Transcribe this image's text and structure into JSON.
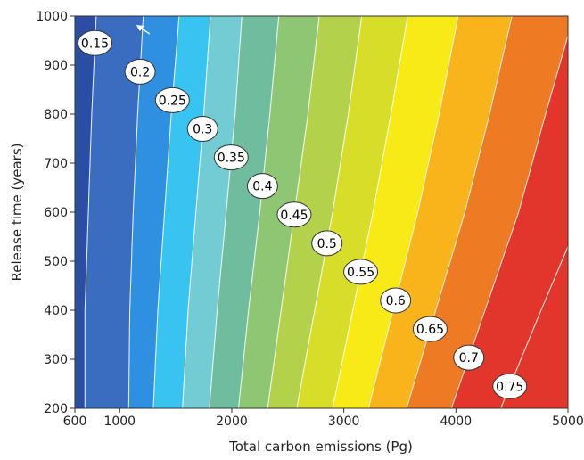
{
  "chart_data": {
    "type": "contour",
    "title": "",
    "xlabel": "Total carbon emissions (Pg)",
    "ylabel": "Release time (years)",
    "xlim": [
      600,
      5000
    ],
    "ylim": [
      200,
      1000
    ],
    "x_ticks": [
      600,
      1000,
      2000,
      3000,
      4000,
      5000
    ],
    "y_ticks": [
      200,
      300,
      400,
      500,
      600,
      700,
      800,
      900,
      1000
    ],
    "x_tick_labels": [
      "600",
      "1000",
      "2000",
      "3000",
      "4000",
      "5000"
    ],
    "y_tick_labels": [
      "200",
      "300",
      "400",
      "500",
      "600",
      "700",
      "800",
      "900",
      "1000"
    ],
    "contour_levels": [
      0.15,
      0.2,
      0.25,
      0.3,
      0.35,
      0.4,
      0.45,
      0.5,
      0.55,
      0.6,
      0.65,
      0.7,
      0.75
    ],
    "contour_labels": [
      "0.15",
      "0.2",
      "0.25",
      "0.3",
      "0.35",
      "0.4",
      "0.45",
      "0.5",
      "0.55",
      "0.6",
      "0.65",
      "0.7",
      "0.75"
    ],
    "contour_lines": [
      {
        "level": 0.15,
        "points": [
          [
            690,
            200
          ],
          [
            690,
            400
          ],
          [
            720,
            600
          ],
          [
            750,
            800
          ],
          [
            790,
            1000
          ]
        ]
      },
      {
        "level": 0.2,
        "points": [
          [
            1080,
            200
          ],
          [
            1090,
            400
          ],
          [
            1120,
            600
          ],
          [
            1160,
            800
          ],
          [
            1210,
            1000
          ]
        ]
      },
      {
        "level": 0.25,
        "points": [
          [
            1300,
            200
          ],
          [
            1340,
            400
          ],
          [
            1400,
            600
          ],
          [
            1460,
            800
          ],
          [
            1530,
            1000
          ]
        ]
      },
      {
        "level": 0.3,
        "points": [
          [
            1560,
            200
          ],
          [
            1610,
            400
          ],
          [
            1680,
            600
          ],
          [
            1750,
            800
          ],
          [
            1810,
            1000
          ]
        ]
      },
      {
        "level": 0.35,
        "points": [
          [
            1800,
            200
          ],
          [
            1870,
            400
          ],
          [
            1950,
            600
          ],
          [
            2030,
            800
          ],
          [
            2090,
            1000
          ]
        ]
      },
      {
        "level": 0.4,
        "points": [
          [
            2060,
            200
          ],
          [
            2150,
            400
          ],
          [
            2250,
            600
          ],
          [
            2340,
            800
          ],
          [
            2420,
            1000
          ]
        ]
      },
      {
        "level": 0.45,
        "points": [
          [
            2320,
            200
          ],
          [
            2440,
            400
          ],
          [
            2560,
            600
          ],
          [
            2680,
            800
          ],
          [
            2780,
            1000
          ]
        ]
      },
      {
        "level": 0.5,
        "points": [
          [
            2580,
            200
          ],
          [
            2740,
            400
          ],
          [
            2900,
            600
          ],
          [
            3040,
            800
          ],
          [
            3160,
            1000
          ]
        ]
      },
      {
        "level": 0.55,
        "points": [
          [
            2900,
            200
          ],
          [
            3080,
            400
          ],
          [
            3260,
            600
          ],
          [
            3420,
            800
          ],
          [
            3570,
            1000
          ]
        ]
      },
      {
        "level": 0.6,
        "points": [
          [
            3220,
            200
          ],
          [
            3440,
            400
          ],
          [
            3660,
            600
          ],
          [
            3850,
            800
          ],
          [
            4020,
            1000
          ]
        ]
      },
      {
        "level": 0.65,
        "points": [
          [
            3560,
            200
          ],
          [
            3820,
            400
          ],
          [
            4080,
            600
          ],
          [
            4300,
            800
          ],
          [
            4500,
            1000
          ]
        ]
      },
      {
        "level": 0.7,
        "points": [
          [
            3960,
            200
          ],
          [
            4260,
            400
          ],
          [
            4560,
            600
          ],
          [
            4800,
            800
          ],
          [
            5000,
            960
          ]
        ]
      },
      {
        "level": 0.75,
        "points": [
          [
            4400,
            200
          ],
          [
            4760,
            400
          ],
          [
            5000,
            530
          ]
        ]
      }
    ],
    "band_colors": [
      "#1f3d8e",
      "#2b4ea5",
      "#3a6cc0",
      "#2f8fe0",
      "#38c3f1",
      "#73cbd3",
      "#6fbc9f",
      "#8fc673",
      "#b4d14b",
      "#d8dd2a",
      "#f7ea17",
      "#f8b41a",
      "#ef7a24",
      "#e2352b"
    ],
    "contour_line_color": "#ffffff",
    "arrow": {
      "points_toward": "upper-left",
      "near_x": 1100,
      "near_y": 1000
    }
  }
}
